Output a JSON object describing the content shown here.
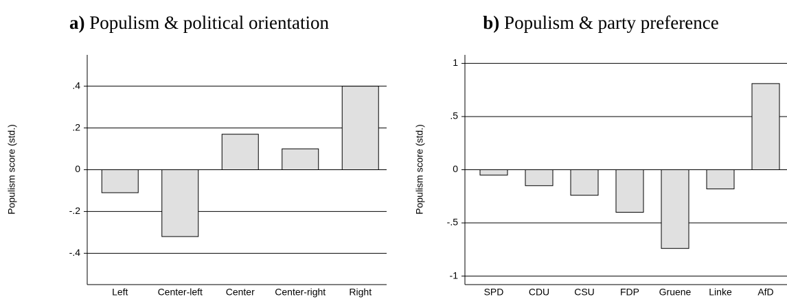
{
  "chart_data": [
    {
      "type": "bar",
      "label": "a)",
      "title": "Populism & political orientation",
      "y_label": "Populism score (std.)",
      "categories": [
        "Left",
        "Center-left",
        "Center",
        "Center-right",
        "Right"
      ],
      "values": [
        -0.11,
        -0.32,
        0.17,
        0.1,
        0.4
      ],
      "color": "#e0e0e0",
      "ylim": [
        -0.55,
        0.55
      ],
      "yticks": [
        {
          "value": -0.4,
          "label": "-.4"
        },
        {
          "value": -0.2,
          "label": "-.2"
        },
        0,
        {
          "value": 0.2,
          "label": ".2"
        },
        {
          "value": 0.4,
          "label": ".4"
        }
      ],
      "grid": true
    },
    {
      "type": "bar",
      "label": "b)",
      "title": "Populism & party preference",
      "y_label": "Populism score (std.)",
      "categories": [
        "SPD",
        "CDU",
        "CSU",
        "FDP",
        "Gruene",
        "Linke",
        "AfD"
      ],
      "values": [
        -0.05,
        -0.15,
        -0.24,
        -0.4,
        -0.74,
        -0.18,
        0.81
      ],
      "color": "#e0e0e0",
      "ylim": [
        -1.08,
        1.08
      ],
      "yticks": [
        -1,
        {
          "value": -0.5,
          "label": "-.5"
        },
        0,
        {
          "value": 0.5,
          "label": ".5"
        },
        1
      ],
      "grid": true
    }
  ]
}
